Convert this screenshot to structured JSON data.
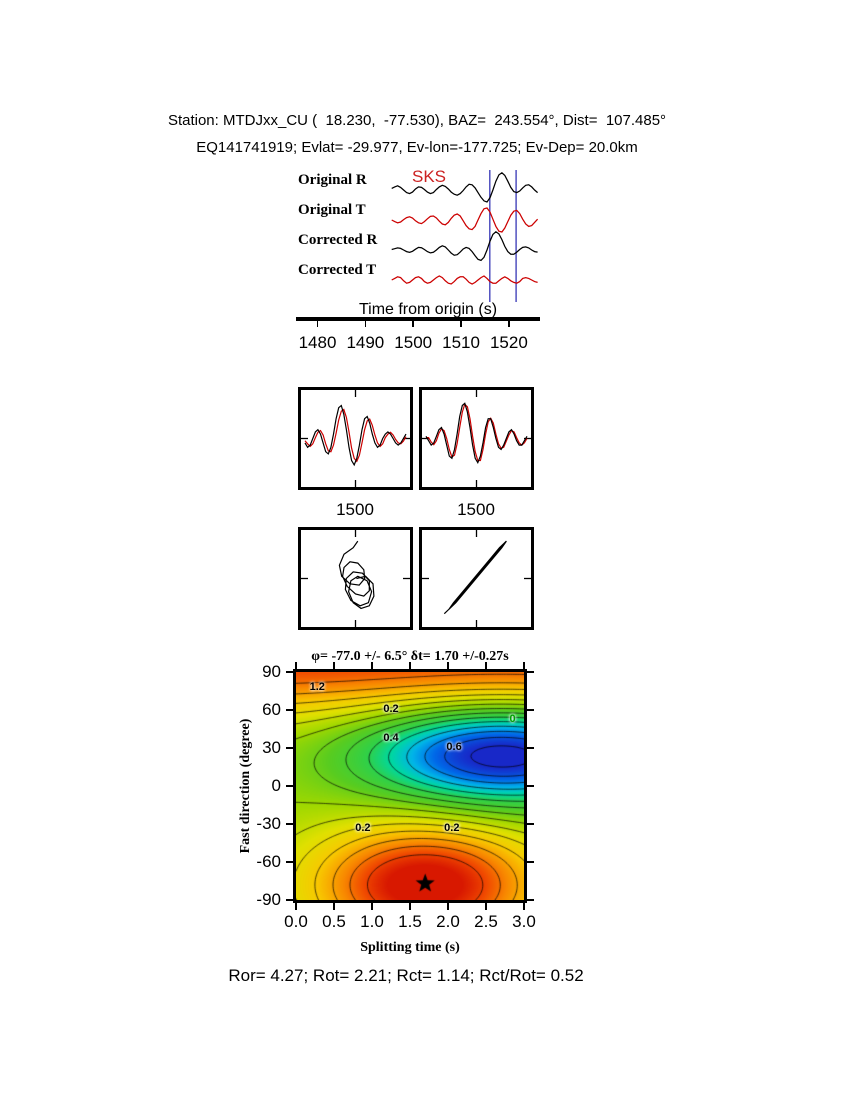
{
  "header": {
    "line1": "Station: MTDJxx_CU (  18.230,  -77.530), BAZ=  243.554°, Dist=  107.485°",
    "line2": "EQ141741919; Evlat= -29.977, Ev-lon=-177.725; Ev-Dep= 20.0km"
  },
  "chart_data": [
    {
      "id": "seismogram",
      "type": "line",
      "xlabel": "Time from origin (s)",
      "xlim": [
        1475.5,
        1526.5
      ],
      "xticks": [
        1480,
        1490,
        1500,
        1510,
        1520
      ],
      "phase_label": "SKS",
      "window_s": [
        1516,
        1521.5
      ],
      "window_color": "#4444bb",
      "series": [
        {
          "name": "Original R",
          "color": "#000000",
          "time_range": [
            1495.5,
            1526
          ],
          "values": [
            0.06,
            0.12,
            0.16,
            0.1,
            0.0,
            -0.1,
            -0.14,
            -0.08,
            0.04,
            0.12,
            0.1,
            0.02,
            -0.08,
            -0.14,
            -0.1,
            0.02,
            0.12,
            0.18,
            0.14,
            0.04,
            -0.08,
            -0.16,
            -0.2,
            -0.14,
            -0.02,
            0.12,
            0.22,
            0.2,
            0.08,
            -0.1,
            -0.28,
            -0.42,
            -0.46,
            -0.3,
            0.0,
            0.34,
            0.58,
            0.66,
            0.56,
            0.34,
            0.1,
            -0.06,
            -0.1,
            -0.04,
            0.08,
            0.18,
            0.2,
            0.12,
            0.0,
            -0.1
          ]
        },
        {
          "name": "Original T",
          "color": "#cc0000",
          "time_range": [
            1495.5,
            1526
          ],
          "values": [
            0.0,
            -0.04,
            -0.07,
            -0.05,
            0.01,
            0.06,
            0.08,
            0.05,
            -0.02,
            -0.07,
            -0.09,
            -0.04,
            0.03,
            0.09,
            0.1,
            0.05,
            -0.03,
            -0.1,
            -0.12,
            -0.06,
            0.04,
            0.12,
            0.15,
            0.1,
            -0.02,
            -0.14,
            -0.22,
            -0.24,
            -0.16,
            0.0,
            0.16,
            0.28,
            0.3,
            0.2,
            0.02,
            -0.16,
            -0.28,
            -0.3,
            -0.2,
            -0.04,
            0.12,
            0.22,
            0.24,
            0.16,
            0.02,
            -0.1,
            -0.16,
            -0.14,
            -0.06,
            0.02
          ]
        },
        {
          "name": "Corrected R",
          "color": "#000000",
          "time_range": [
            1495.5,
            1526
          ],
          "values": [
            0.02,
            0.05,
            0.08,
            0.06,
            0.0,
            -0.06,
            -0.09,
            -0.05,
            0.03,
            0.1,
            0.09,
            0.02,
            -0.06,
            -0.11,
            -0.09,
            0.0,
            0.1,
            0.16,
            0.12,
            0.0,
            -0.12,
            -0.2,
            -0.18,
            -0.08,
            0.04,
            0.1,
            0.06,
            -0.06,
            -0.22,
            -0.36,
            -0.4,
            -0.28,
            0.0,
            0.34,
            0.6,
            0.7,
            0.62,
            0.4,
            0.14,
            -0.06,
            -0.16,
            -0.16,
            -0.08,
            0.02,
            0.1,
            0.12,
            0.08,
            0.0,
            -0.06,
            -0.08
          ]
        },
        {
          "name": "Corrected T",
          "color": "#cc0000",
          "time_range": [
            1495.5,
            1526
          ],
          "values": [
            0.0,
            0.02,
            0.04,
            0.03,
            -0.01,
            -0.04,
            -0.03,
            0.0,
            0.03,
            0.04,
            0.02,
            -0.02,
            -0.04,
            -0.03,
            0.0,
            0.03,
            0.05,
            0.03,
            -0.01,
            -0.04,
            -0.05,
            -0.02,
            0.02,
            0.04,
            0.04,
            0.01,
            -0.03,
            -0.05,
            -0.03,
            0.0,
            0.03,
            0.05,
            0.02,
            -0.02,
            -0.04,
            -0.04,
            -0.01,
            0.02,
            0.04,
            0.02,
            -0.01,
            -0.03,
            -0.04,
            -0.02,
            0.02,
            0.03,
            0.02,
            0.0,
            -0.02,
            -0.03
          ]
        }
      ]
    },
    {
      "id": "component-pair-original",
      "type": "line",
      "xticks": [
        1500
      ],
      "series": [
        {
          "name": "fast",
          "color": "#000000",
          "values": [
            -0.1,
            -0.2,
            -0.15,
            0.0,
            0.15,
            0.2,
            0.1,
            -0.1,
            -0.3,
            -0.35,
            -0.2,
            0.1,
            0.45,
            0.7,
            0.75,
            0.55,
            0.2,
            -0.2,
            -0.5,
            -0.6,
            -0.45,
            -0.15,
            0.2,
            0.45,
            0.5,
            0.35,
            0.1,
            -0.1,
            -0.2,
            -0.15,
            0.0,
            0.1,
            0.15,
            0.1,
            0.0,
            -0.1,
            -0.15,
            -0.1,
            0.0,
            0.1
          ]
        },
        {
          "name": "slow",
          "color": "#cc0000",
          "values": [
            -0.05,
            -0.12,
            -0.18,
            -0.12,
            0.02,
            0.14,
            0.18,
            0.08,
            -0.12,
            -0.28,
            -0.3,
            -0.15,
            0.12,
            0.42,
            0.62,
            0.66,
            0.48,
            0.15,
            -0.22,
            -0.45,
            -0.52,
            -0.38,
            -0.1,
            0.2,
            0.4,
            0.44,
            0.3,
            0.08,
            -0.1,
            -0.18,
            -0.12,
            0.02,
            0.1,
            0.14,
            0.08,
            -0.02,
            -0.1,
            -0.12,
            -0.06,
            0.04
          ]
        }
      ]
    },
    {
      "id": "component-pair-corrected",
      "type": "line",
      "xticks": [
        1500
      ],
      "series": [
        {
          "name": "fast",
          "color": "#000000",
          "values": [
            0.05,
            -0.05,
            -0.15,
            -0.1,
            0.05,
            0.2,
            0.25,
            0.1,
            -0.15,
            -0.4,
            -0.45,
            -0.25,
            0.1,
            0.5,
            0.75,
            0.8,
            0.6,
            0.25,
            -0.15,
            -0.45,
            -0.55,
            -0.4,
            -0.1,
            0.25,
            0.45,
            0.45,
            0.25,
            0.0,
            -0.2,
            -0.25,
            -0.15,
            0.0,
            0.15,
            0.2,
            0.1,
            -0.05,
            -0.15,
            -0.15,
            -0.05,
            0.05
          ]
        },
        {
          "name": "slow",
          "color": "#cc0000",
          "values": [
            0.02,
            0.02,
            -0.08,
            -0.14,
            -0.05,
            0.12,
            0.22,
            0.18,
            0.0,
            -0.25,
            -0.42,
            -0.38,
            -0.12,
            0.25,
            0.6,
            0.78,
            0.72,
            0.45,
            0.05,
            -0.3,
            -0.5,
            -0.5,
            -0.25,
            0.1,
            0.38,
            0.46,
            0.35,
            0.1,
            -0.12,
            -0.22,
            -0.2,
            -0.06,
            0.08,
            0.18,
            0.15,
            0.02,
            -0.1,
            -0.15,
            -0.1,
            0.0
          ]
        }
      ]
    },
    {
      "id": "particle-motion-original",
      "type": "scatter",
      "points": [
        [
          0.05,
          0.85
        ],
        [
          -0.05,
          0.7
        ],
        [
          -0.25,
          0.55
        ],
        [
          -0.35,
          0.3
        ],
        [
          -0.3,
          0.05
        ],
        [
          -0.12,
          -0.12
        ],
        [
          0.08,
          -0.15
        ],
        [
          0.2,
          0.0
        ],
        [
          0.18,
          0.2
        ],
        [
          0.05,
          0.35
        ],
        [
          -0.12,
          0.38
        ],
        [
          -0.25,
          0.25
        ],
        [
          -0.28,
          0.05
        ],
        [
          -0.18,
          -0.18
        ],
        [
          0.0,
          -0.35
        ],
        [
          0.18,
          -0.4
        ],
        [
          0.3,
          -0.28
        ],
        [
          0.3,
          -0.05
        ],
        [
          0.15,
          0.12
        ],
        [
          -0.05,
          0.15
        ],
        [
          -0.2,
          0.0
        ],
        [
          -0.22,
          -0.25
        ],
        [
          -0.1,
          -0.5
        ],
        [
          0.1,
          -0.62
        ],
        [
          0.28,
          -0.55
        ],
        [
          0.35,
          -0.3
        ],
        [
          0.25,
          -0.05
        ],
        [
          0.05,
          0.05
        ],
        [
          -0.1,
          -0.05
        ],
        [
          -0.15,
          -0.3
        ],
        [
          -0.05,
          -0.55
        ],
        [
          0.12,
          -0.68
        ],
        [
          0.3,
          -0.62
        ],
        [
          0.4,
          -0.4
        ],
        [
          0.38,
          -0.12
        ],
        [
          0.22,
          0.05
        ],
        [
          0.02,
          0.0
        ]
      ]
    },
    {
      "id": "particle-motion-corrected",
      "type": "scatter",
      "points": [
        [
          -0.7,
          -0.8
        ],
        [
          -0.5,
          -0.6
        ],
        [
          -0.3,
          -0.35
        ],
        [
          -0.1,
          -0.1
        ],
        [
          0.1,
          0.15
        ],
        [
          0.3,
          0.4
        ],
        [
          0.5,
          0.65
        ],
        [
          0.6,
          0.8
        ],
        [
          0.5,
          0.7
        ],
        [
          0.3,
          0.45
        ],
        [
          0.1,
          0.2
        ],
        [
          -0.1,
          -0.05
        ],
        [
          -0.3,
          -0.3
        ],
        [
          -0.5,
          -0.55
        ],
        [
          -0.6,
          -0.7
        ],
        [
          -0.45,
          -0.55
        ],
        [
          -0.25,
          -0.3
        ],
        [
          -0.05,
          -0.05
        ],
        [
          0.15,
          0.2
        ],
        [
          0.35,
          0.45
        ],
        [
          0.55,
          0.7
        ],
        [
          0.65,
          0.85
        ],
        [
          0.55,
          0.75
        ],
        [
          0.35,
          0.5
        ],
        [
          0.15,
          0.25
        ],
        [
          -0.05,
          0.0
        ],
        [
          -0.25,
          -0.25
        ],
        [
          -0.45,
          -0.5
        ],
        [
          -0.55,
          -0.65
        ],
        [
          -0.4,
          -0.45
        ],
        [
          -0.2,
          -0.2
        ],
        [
          0.0,
          0.05
        ],
        [
          0.2,
          0.3
        ],
        [
          0.4,
          0.55
        ],
        [
          0.5,
          0.65
        ]
      ]
    },
    {
      "id": "error-surface",
      "type": "heatmap",
      "title": "φ= -77.0 +/- 6.5° δt= 1.70 +/-0.27s",
      "xlabel": "Splitting time (s)",
      "ylabel": "Fast direction (degree)",
      "xlim": [
        0,
        3
      ],
      "ylim": [
        -90,
        90
      ],
      "xticks": [
        0,
        0.5,
        1,
        1.5,
        2,
        2.5,
        3
      ],
      "yticks": [
        90,
        60,
        30,
        0,
        -30,
        -60,
        -90
      ],
      "best_fit": {
        "phi_deg": -77.0,
        "phi_err": 6.5,
        "dt_s": 1.7,
        "dt_err": 0.27,
        "marker": "star"
      },
      "contour_levels": [
        0,
        0.1,
        0.2,
        0.3,
        0.4,
        0.5,
        0.6,
        0.7,
        0.8,
        0.9,
        1.0,
        1.1,
        1.2,
        1.3,
        1.4
      ],
      "contour_labels": [
        {
          "text": "1.2",
          "t": 0.28,
          "p": 78
        },
        {
          "text": "0.2",
          "t": 1.25,
          "p": 61
        },
        {
          "text": "0.4",
          "t": 1.25,
          "p": 38
        },
        {
          "text": "0.6",
          "t": 2.08,
          "p": 31
        },
        {
          "text": "0",
          "t": 2.85,
          "p": 53,
          "color": "#00a000"
        },
        {
          "text": "0.2",
          "t": 0.88,
          "p": -33
        },
        {
          "text": "0.2",
          "t": 2.05,
          "p": -33
        }
      ],
      "field": {
        "base": 0.8,
        "scale_max": 1.5,
        "gaussians": [
          {
            "amp": 0.6,
            "t0": 1.5,
            "st": 100,
            "p0": 98,
            "sp": 30
          },
          {
            "amp": 0.78,
            "t0": 1.7,
            "st": 1.05,
            "p0": -78,
            "sp": 34
          },
          {
            "amp": -0.88,
            "t0": 2.7,
            "st": 1.25,
            "p0": 25,
            "sp": 28
          }
        ]
      },
      "colormap": [
        [
          0.0,
          "#1828c8"
        ],
        [
          0.1,
          "#0068e8"
        ],
        [
          0.18,
          "#00b4e8"
        ],
        [
          0.26,
          "#00d8a0"
        ],
        [
          0.34,
          "#30d048"
        ],
        [
          0.44,
          "#58cc20"
        ],
        [
          0.54,
          "#a0d800"
        ],
        [
          0.64,
          "#e0e000"
        ],
        [
          0.74,
          "#f8c800"
        ],
        [
          0.84,
          "#f88800"
        ],
        [
          0.92,
          "#f04800"
        ],
        [
          1.0,
          "#d81800"
        ]
      ]
    }
  ],
  "footer": {
    "stats": "Ror= 4.27; Rot= 2.21; Rct= 1.14; Rct/Rot= 0.52"
  }
}
